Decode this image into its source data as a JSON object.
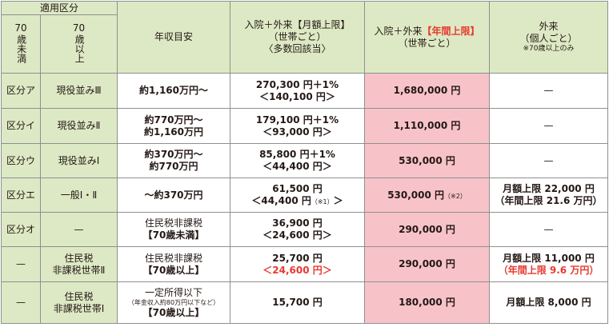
{
  "header": {
    "category_title": "適用区分",
    "under70_num": "70",
    "under70_text": "歳未満",
    "over70_num": "70",
    "over70_text": "歳以上",
    "income": "年収目安",
    "monthly_line1": "入院＋外来【月額上限】",
    "monthly_line2": "（世帯ごと）",
    "monthly_line3": "〈多数回該当〉",
    "annual_line1a": "入院＋外来",
    "annual_line1b": "【年間上限】",
    "annual_line2": "（世帯ごと）",
    "outpatient_line1": "外来",
    "outpatient_line2": "（個人ごと）",
    "outpatient_note": "※70歳以上のみ"
  },
  "rows": [
    {
      "under70": "区分ア",
      "over70": "現役並みⅢ",
      "income": [
        "約1,160万円～"
      ],
      "monthly": "270,300 円＋1%",
      "monthly_multi": "＜140,100 円＞",
      "annual": "1,680,000 円",
      "outpatient": "—"
    },
    {
      "under70": "区分イ",
      "over70": "現役並みⅡ",
      "income": [
        "約770万円～",
        "約1,160万円"
      ],
      "monthly": "179,100 円＋1%",
      "monthly_multi": "＜93,000 円＞",
      "annual": "1,110,000 円",
      "outpatient": "—"
    },
    {
      "under70": "区分ウ",
      "over70": "現役並みⅠ",
      "income": [
        "約370万円～",
        "約770万円"
      ],
      "monthly": "85,800 円＋1%",
      "monthly_multi": "＜44,400 円＞",
      "annual": "530,000 円",
      "outpatient": "—"
    },
    {
      "under70": "区分エ",
      "over70": "一般Ⅰ・Ⅱ",
      "income": [
        "～約370万円"
      ],
      "monthly": "61,500 円",
      "monthly_multi": "＜44,400 円",
      "monthly_note": "（※1）",
      "monthly_close": "＞",
      "annual": "530,000 円",
      "annual_note": "（※2）",
      "outpatient": "月額上限 22,000 円",
      "outpatient_annual": "（年間上限 21.6 万円）"
    },
    {
      "under70": "区分オ",
      "over70": "—",
      "income": [
        "住民税非課税",
        "【70歳未満】"
      ],
      "monthly": "36,900 円",
      "monthly_multi": "＜24,600 円＞",
      "annual": "290,000 円",
      "outpatient": "—"
    },
    {
      "under70": "—",
      "over70": [
        "住民税",
        "非課税世帯Ⅱ"
      ],
      "income": [
        "住民税非課税",
        "【70歳以上】"
      ],
      "monthly": "25,700 円",
      "monthly_multi": "＜24,600 円＞",
      "annual": "290,000 円",
      "outpatient": "月額上限 11,000 円",
      "outpatient_annual": "（年間上限 9.6 万円）"
    },
    {
      "under70": "—",
      "over70": [
        "住民税",
        "非課税世帯Ⅰ"
      ],
      "income": [
        "一定所得以下",
        "（年金収入約80万円以下など）",
        "【70歳以上】"
      ],
      "monthly": "15,700 円",
      "annual": "180,000 円",
      "outpatient": "月額上限 8,000 円"
    }
  ],
  "colors": {
    "header_bg": "#dde9c4",
    "annual_bg": "#f7c3c9",
    "accent_red": "#e8392f",
    "border": "#8f8f8f"
  }
}
